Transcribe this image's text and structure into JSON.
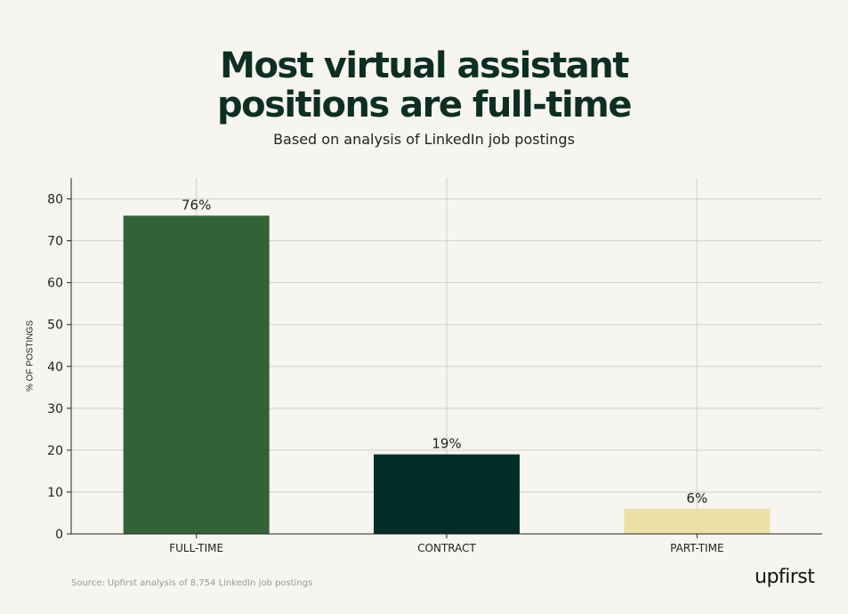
{
  "chart_data": {
    "type": "bar",
    "title": "Most virtual assistant positions are full-time",
    "title_lines": [
      "Most virtual assistant",
      "positions are full-time"
    ],
    "subtitle": "Based on analysis of LinkedIn job postings",
    "categories": [
      "FULL-TIME",
      "CONTRACT",
      "PART-TIME"
    ],
    "values": [
      76,
      19,
      6
    ],
    "data_labels": [
      "76%",
      "19%",
      "6%"
    ],
    "bar_colors": [
      "#336236",
      "#022e27",
      "#ebe1a7"
    ],
    "xlabel": "",
    "ylabel": "% OF POSTINGS",
    "ylim": [
      0,
      85
    ],
    "yticks": [
      "0",
      "10",
      "20",
      "30",
      "40",
      "50",
      "60",
      "70",
      "80"
    ],
    "grid": true,
    "legend": "none"
  },
  "footer": {
    "source": "Source: Upfirst analysis of 8,754 LinkedIn job postings",
    "logo": "upfirst"
  },
  "colors": {
    "background": "#f6f5ef",
    "title": "#0e2e24",
    "grid": "#cfcfcf"
  }
}
